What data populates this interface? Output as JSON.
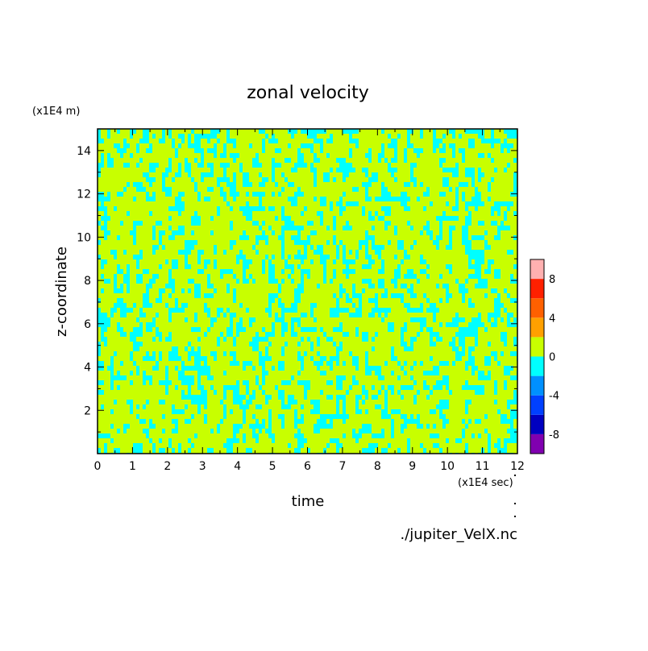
{
  "chart_data": {
    "type": "heatmap",
    "title": "zonal velocity",
    "xlabel": "time",
    "ylabel": "z-coordinate",
    "x_scale_label": "(x1E4 sec)",
    "y_scale_label": "(x1E4 m)",
    "source_label": "./jupiter_VelX.nc",
    "xlim": [
      0,
      12
    ],
    "ylim": [
      0,
      15
    ],
    "x_ticks": [
      0,
      1,
      2,
      3,
      4,
      5,
      6,
      7,
      8,
      9,
      10,
      11,
      12
    ],
    "y_ticks": [
      2,
      4,
      6,
      8,
      10,
      12,
      14
    ],
    "field_description": "noisy field of values mostly between -2 and 2",
    "dominant_levels": [
      -2,
      0
    ],
    "colorbar": {
      "levels": [
        -10,
        -8,
        -6,
        -4,
        -2,
        0,
        2,
        4,
        6,
        8,
        10
      ],
      "tick_labels": [
        8,
        4,
        0,
        -4,
        -8
      ],
      "colors": [
        "#8000b0",
        "#0000c0",
        "#0040ff",
        "#0090ff",
        "#00ffff",
        "#c8ff00",
        "#ffa000",
        "#ff6000",
        "#ff2000",
        "#ffb0b0"
      ]
    }
  }
}
